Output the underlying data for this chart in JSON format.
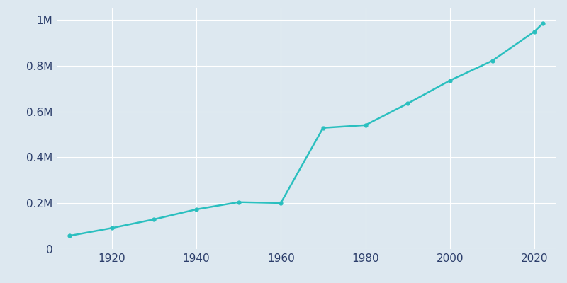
{
  "years": [
    1910,
    1920,
    1930,
    1940,
    1950,
    1960,
    1970,
    1980,
    1990,
    2000,
    2010,
    2020,
    2022
  ],
  "population": [
    57699,
    91558,
    129549,
    173065,
    204517,
    201030,
    529004,
    540920,
    635230,
    735617,
    821784,
    949611,
    985843
  ],
  "line_color": "#2abfbf",
  "marker_color": "#2abfbf",
  "background_color": "#dde8f0",
  "plot_background_color": "#dde8f0",
  "grid_color": "#ffffff",
  "tick_color": "#2c3e6b",
  "ylim": [
    0,
    1050000
  ],
  "xlim": [
    1907,
    2025
  ],
  "ytick_labels": [
    "0",
    "0.2M",
    "0.4M",
    "0.6M",
    "0.8M",
    "1M"
  ],
  "ytick_values": [
    0,
    200000,
    400000,
    600000,
    800000,
    1000000
  ],
  "xtick_values": [
    1920,
    1940,
    1960,
    1980,
    2000,
    2020
  ],
  "line_width": 1.8,
  "marker_size": 3.5
}
